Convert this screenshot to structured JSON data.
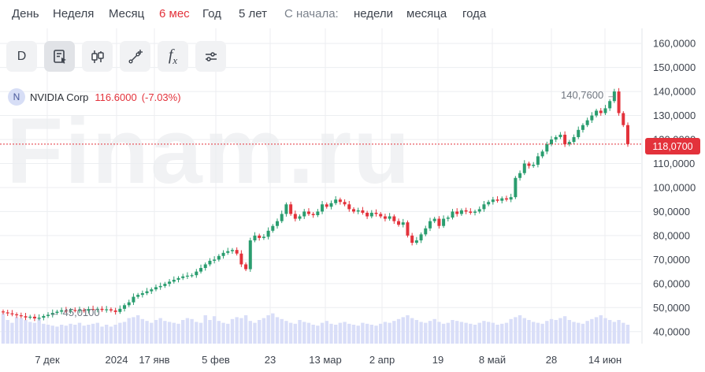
{
  "periods": [
    "День",
    "Неделя",
    "Месяц",
    "6 мес",
    "Год",
    "5 лет"
  ],
  "active_period": "6 мес",
  "since_label": "С начала:",
  "since_options": [
    "недели",
    "месяца",
    "года"
  ],
  "toolbar": {
    "interval": "D"
  },
  "instrument": {
    "logo": "N",
    "name": "NVIDIA Corp",
    "price": "116.6000",
    "change": "(-7.03%)"
  },
  "watermark": "Finam.ru",
  "colors": {
    "up": "#2a9d6f",
    "down": "#e3323b",
    "volume": "#d9def8",
    "accent": "#e3323b"
  },
  "chart_data": {
    "type": "candlestick",
    "y_axis": {
      "ticks": [
        "40,0000",
        "50,0000",
        "60,0000",
        "70,0000",
        "80,0000",
        "90,0000",
        "100,0000",
        "110,0000",
        "120,0000",
        "130,0000",
        "140,0000",
        "150,0000",
        "160,0000"
      ],
      "range": [
        35,
        163
      ]
    },
    "x_axis": {
      "ticks": [
        "7 дек",
        "2024",
        "17 янв",
        "5 фев",
        "23",
        "13 мар",
        "2 апр",
        "19",
        "8 май",
        "28",
        "14 июн"
      ]
    },
    "last_price": 118.07,
    "last_price_label": "118,0700",
    "high_label": "140,7600",
    "low_label": "45,0100",
    "close": [
      48.0,
      47.6,
      47.2,
      46.8,
      46.4,
      45.9,
      46.2,
      45.5,
      45.8,
      46.5,
      47.0,
      47.8,
      48.3,
      48.9,
      48.6,
      49.0,
      48.8,
      49.0,
      48.7,
      49.4,
      49.1,
      49.5,
      49.0,
      49.3,
      48.8,
      48.2,
      49.5,
      51.0,
      52.2,
      54.5,
      55.3,
      56.0,
      56.8,
      57.6,
      58.5,
      59.0,
      59.9,
      60.8,
      61.6,
      62.3,
      63.0,
      63.3,
      63.5,
      65.0,
      66.5,
      68.0,
      69.5,
      70.0,
      71.5,
      72.8,
      73.5,
      74.0,
      72.5,
      68.0,
      66.0,
      78.0,
      80.0,
      79.0,
      79.5,
      82.0,
      84.0,
      86.0,
      89.0,
      93.0,
      89.0,
      87.0,
      88.0,
      90.0,
      89.0,
      88.5,
      90.0,
      93.0,
      92.0,
      93.5,
      95.0,
      94.0,
      93.0,
      91.0,
      90.0,
      90.5,
      89.5,
      88.0,
      89.5,
      89.0,
      88.0,
      87.0,
      88.0,
      86.0,
      84.5,
      85.5,
      80.0,
      77.0,
      78.0,
      80.5,
      83.0,
      86.0,
      87.0,
      84.0,
      87.0,
      87.5,
      90.0,
      89.0,
      90.5,
      90.0,
      89.5,
      90.0,
      91.0,
      93.0,
      94.0,
      95.0,
      94.5,
      95.5,
      95.0,
      96.0,
      104.0,
      106.0,
      110.0,
      109.0,
      109.5,
      113.0,
      115.0,
      118.0,
      120.0,
      121.0,
      122.0,
      118.0,
      119.0,
      121.0,
      124.0,
      126.0,
      128.0,
      130.0,
      132.0,
      131.0,
      133.0,
      136.0,
      140.0,
      131.0,
      126.0,
      118.07
    ],
    "volume": [
      62,
      55,
      52,
      58,
      57,
      55,
      53,
      52,
      57,
      51,
      50,
      49,
      48,
      50,
      49,
      51,
      50,
      52,
      49,
      50,
      51,
      52,
      48,
      50,
      48,
      50,
      52,
      53,
      57,
      58,
      60,
      56,
      54,
      52,
      55,
      57,
      54,
      53,
      52,
      51,
      55,
      57,
      56,
      53,
      52,
      60,
      55,
      59,
      54,
      52,
      51,
      56,
      58,
      57,
      60,
      54,
      52,
      55,
      57,
      60,
      62,
      58,
      56,
      54,
      52,
      51,
      55,
      53,
      52,
      50,
      49,
      52,
      54,
      51,
      50,
      52,
      53,
      51,
      50,
      49,
      52,
      51,
      50,
      49,
      51,
      53,
      52,
      54,
      56,
      58,
      60,
      57,
      55,
      53,
      52,
      54,
      56,
      53,
      51,
      52,
      55,
      54,
      53,
      52,
      51,
      50,
      52,
      54,
      53,
      52,
      50,
      51,
      52,
      56,
      58,
      60,
      57,
      55,
      53,
      52,
      51,
      54,
      56,
      55,
      57,
      59,
      55,
      53,
      52,
      51,
      54,
      56,
      58,
      60,
      57,
      55,
      53,
      55,
      52,
      50
    ]
  }
}
